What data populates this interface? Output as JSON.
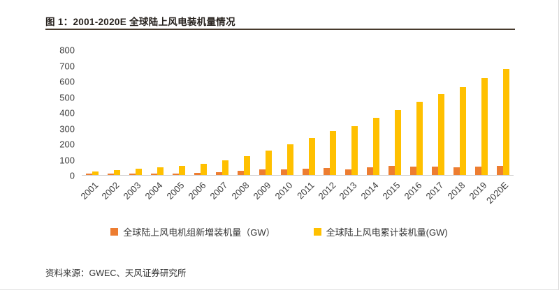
{
  "figure": {
    "title": "图 1：2001-2020E 全球陆上风电装机量情况",
    "source": "资料来源：GWEC、天风证券研究所"
  },
  "colors": {
    "new_capacity_orange": "#ED7D31",
    "cumulative_yellow": "#FFC000",
    "title_rule": "#473A2D",
    "axis_text": "#3C3C3C"
  },
  "chart_data": {
    "type": "bar",
    "title": "图 1：2001-2020E 全球陆上风电装机量情况",
    "categories": [
      "2001",
      "2002",
      "2003",
      "2004",
      "2005",
      "2006",
      "2007",
      "2008",
      "2009",
      "2010",
      "2011",
      "2012",
      "2013",
      "2014",
      "2015",
      "2016",
      "2017",
      "2018",
      "2019",
      "2020E"
    ],
    "series": [
      {
        "name": "全球陆上风电机组新增装机量（GW）",
        "color": "#ED7D31",
        "values": [
          7,
          7,
          8,
          8,
          11,
          15,
          20,
          27,
          38,
          38,
          41,
          45,
          36,
          51,
          60,
          54,
          52,
          50,
          54,
          60
        ]
      },
      {
        "name": "全球陆上风电累计装机量(GW)",
        "color": "#FFC000",
        "values": [
          24,
          31,
          39,
          47,
          58,
          73,
          93,
          119,
          157,
          195,
          235,
          280,
          315,
          365,
          415,
          468,
          520,
          565,
          620,
          680
        ]
      }
    ],
    "xlabel": "",
    "ylabel": "",
    "ylim": [
      0,
      800
    ],
    "ytick_step": 100,
    "grid": false,
    "legend_position": "bottom",
    "xtick_rotation": 45
  }
}
